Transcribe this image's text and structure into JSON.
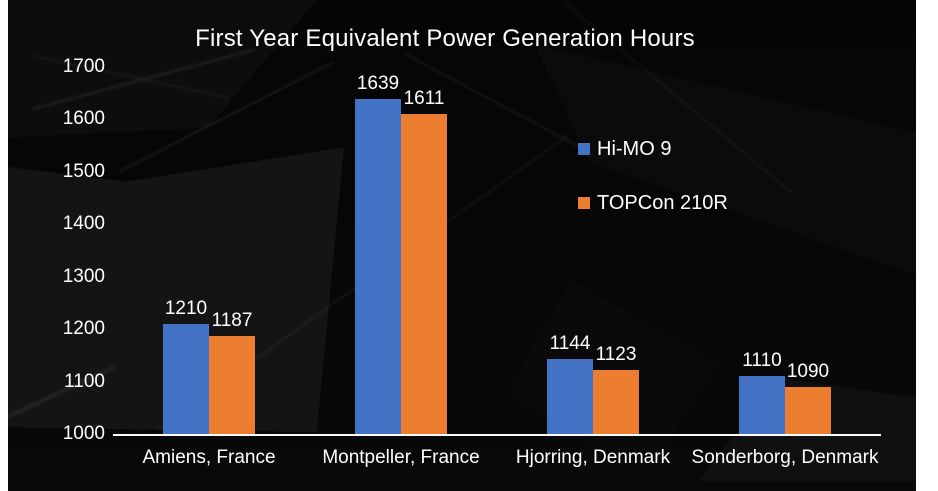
{
  "page": {
    "margin_color": "#ffffff",
    "slide_background": "#060606"
  },
  "chart_data": {
    "type": "bar",
    "title": "First Year Equivalent Power Generation Hours",
    "categories": [
      "Amiens, France",
      "Montpeller, France",
      "Hjorring, Denmark",
      "Sonderborg, Denmark"
    ],
    "series": [
      {
        "name": "Hi-MO 9",
        "color": "#4472C4",
        "values": [
          1210,
          1639,
          1144,
          1110
        ]
      },
      {
        "name": "TOPCon 210R",
        "color": "#ED7D31",
        "values": [
          1187,
          1611,
          1123,
          1090
        ]
      }
    ],
    "ylim": [
      1000,
      1700
    ],
    "yticks": [
      1700,
      1600,
      1500,
      1400,
      1300,
      1200,
      1100,
      1000
    ],
    "grid": false,
    "data_labels": true,
    "legend_position": "middle-right",
    "text_color": "#ffffff",
    "axis_line_color": "#ffffff"
  }
}
